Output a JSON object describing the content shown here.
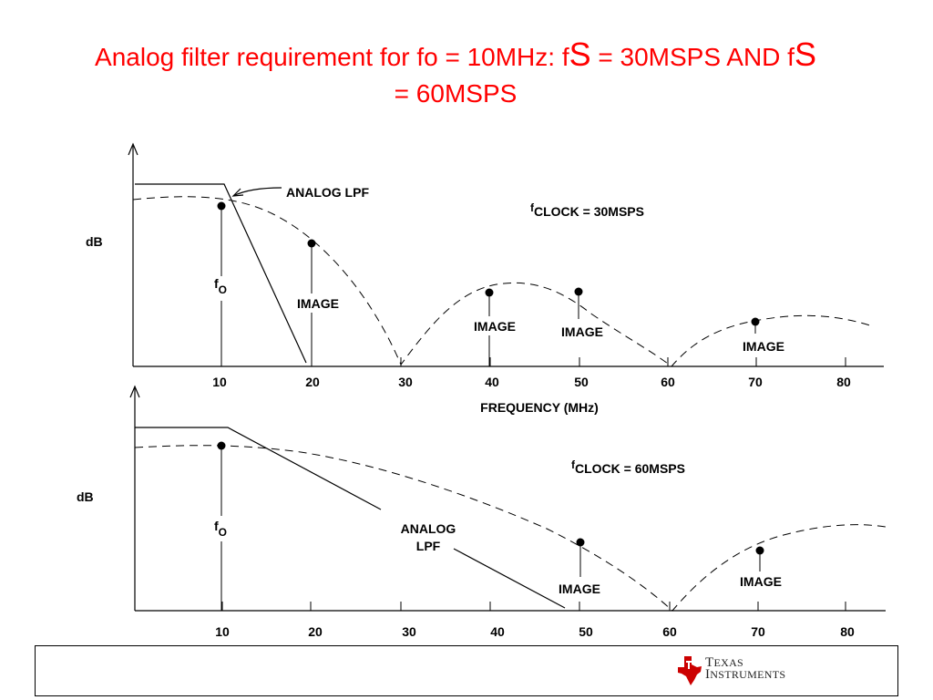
{
  "title": {
    "part1": "Analog filter requirement for fo = 10MHz: f",
    "sub1": "S",
    "part2": " = 30MSPS AND f",
    "sub2": "S",
    "part3": " = 60MSPS"
  },
  "top_chart": {
    "ylabel": "dB",
    "xlabel": "FREQUENCY  (MHz)",
    "ticks": [
      "10",
      "20",
      "30",
      "40",
      "50",
      "60",
      "70",
      "80"
    ],
    "clock_f": "f",
    "clock_sub": "CLOCK = 30MSPS",
    "lpf_label": "ANALOG LPF",
    "fo_f": "f",
    "fo_sub": "O",
    "image_label": "IMAGE"
  },
  "bottom_chart": {
    "ylabel": "dB",
    "ticks": [
      "10",
      "20",
      "30",
      "40",
      "50",
      "60",
      "70",
      "80"
    ],
    "clock_f": "f",
    "clock_sub": "CLOCK = 60MSPS",
    "lpf_line1": "ANALOG",
    "lpf_line2": "LPF",
    "fo_f": "f",
    "fo_sub": "O",
    "image_label": "IMAGE"
  },
  "logo": {
    "line1_cap": "T",
    "line1_rest": "EXAS",
    "line2_cap": "I",
    "line2_rest": "NSTRUMENTS",
    "color": "#cc0000"
  }
}
